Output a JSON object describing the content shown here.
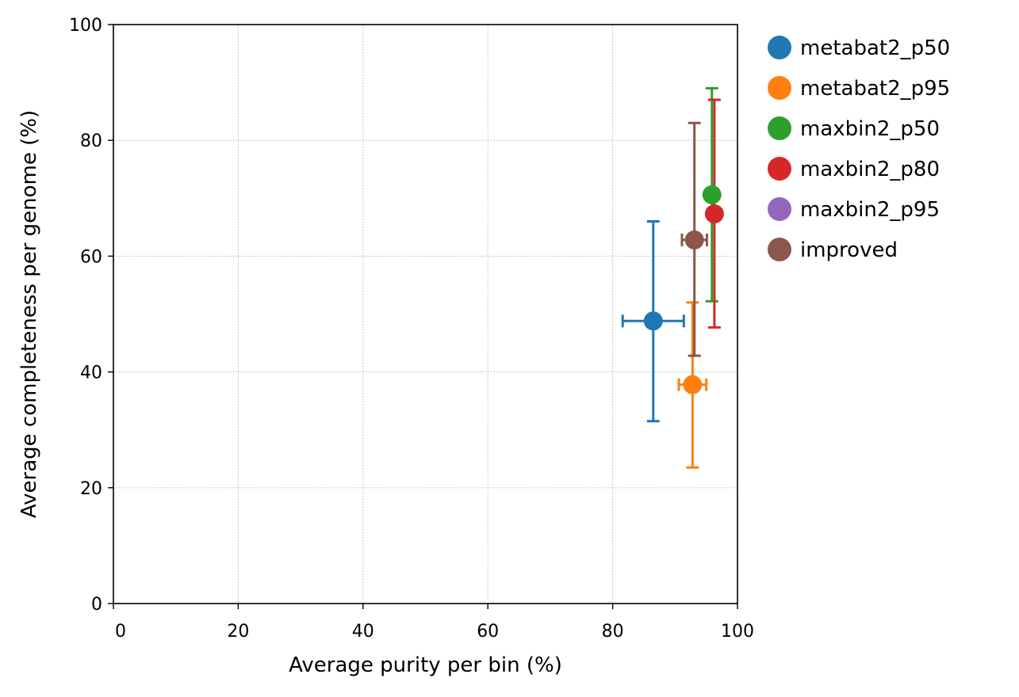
{
  "chart_data": {
    "type": "scatter",
    "xlabel": "Average purity per bin (%)",
    "ylabel": "Average completeness per genome (%)",
    "xlim": [
      0,
      100
    ],
    "ylim": [
      0,
      100
    ],
    "xticks": [
      0,
      20,
      40,
      60,
      80,
      100
    ],
    "yticks": [
      0,
      20,
      40,
      60,
      80,
      100
    ],
    "x_tick_labels": [
      "0",
      "20",
      "40",
      "60",
      "80",
      "100"
    ],
    "y_tick_labels": [
      "0",
      "20",
      "40",
      "60",
      "80",
      "100"
    ],
    "grid": true,
    "legend_position": "outside-right-top",
    "series": [
      {
        "name": "metabat2_p50",
        "color": "#1f77b4",
        "x": 86.5,
        "y": 48.8,
        "x_err": [
          81.6,
          91.4
        ],
        "y_err": [
          31.5,
          66.0
        ]
      },
      {
        "name": "metabat2_p95",
        "color": "#ff7f0e",
        "x": 92.8,
        "y": 37.8,
        "x_err": [
          90.6,
          95.0
        ],
        "y_err": [
          23.5,
          52.0
        ]
      },
      {
        "name": "maxbin2_p50",
        "color": "#2ca02c",
        "x": 95.9,
        "y": 70.6,
        "x_err": [
          95.6,
          96.2
        ],
        "y_err": [
          52.2,
          89.0
        ]
      },
      {
        "name": "maxbin2_p80",
        "color": "#d62728",
        "x": 96.3,
        "y": 67.3,
        "x_err": [
          96.0,
          96.6
        ],
        "y_err": [
          47.7,
          87.0
        ]
      },
      {
        "name": "maxbin2_p95",
        "color": "#9467bd",
        "x": null,
        "y": null,
        "x_err": null,
        "y_err": null
      },
      {
        "name": "improved",
        "color": "#8c564b",
        "x": 93.1,
        "y": 62.8,
        "x_err": [
          91.1,
          95.1
        ],
        "y_err": [
          42.8,
          83.0
        ]
      }
    ]
  }
}
